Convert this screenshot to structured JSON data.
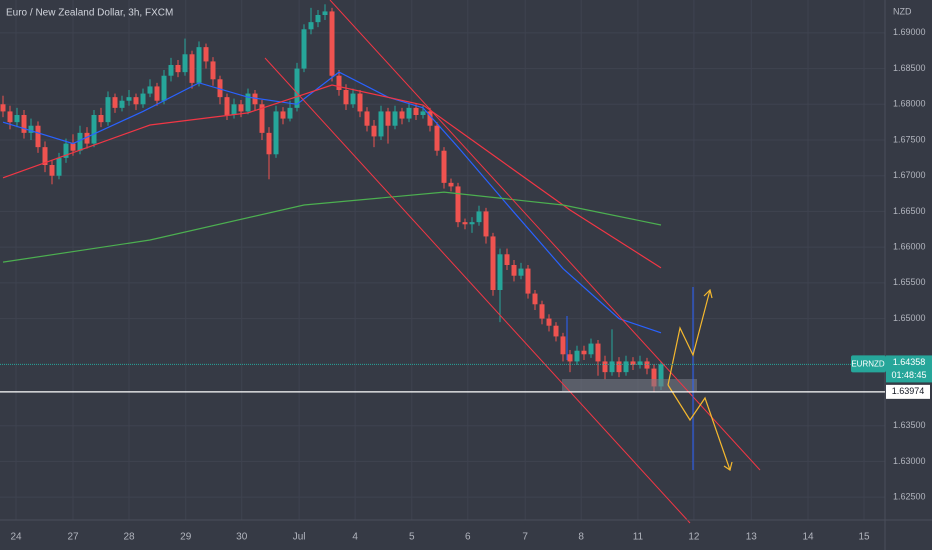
{
  "chart_data": {
    "type": "candlestick",
    "title": "Euro / New Zealand Dollar, 3h, FXCM",
    "currency": "NZD",
    "symbol": "EURNZD",
    "last_price": 1.64358,
    "countdown": "01:48:45",
    "level": 1.63974,
    "up_color": "#26a69a",
    "down_color": "#ef5350",
    "xlim": [
      -0.43,
      126
    ],
    "ylim": [
      1.6218,
      1.6946
    ],
    "xticks": [
      {
        "value": 1.86,
        "label": "24"
      },
      {
        "value": 10,
        "label": "27"
      },
      {
        "value": 18,
        "label": "28"
      },
      {
        "value": 26.1,
        "label": "29"
      },
      {
        "value": 34.1,
        "label": "30"
      },
      {
        "value": 42.3,
        "label": "Jul"
      },
      {
        "value": 50.3,
        "label": "4"
      },
      {
        "value": 58.4,
        "label": "5"
      },
      {
        "value": 66.4,
        "label": "6"
      },
      {
        "value": 74.6,
        "label": "7"
      },
      {
        "value": 82.6,
        "label": "8"
      },
      {
        "value": 90.7,
        "label": "11"
      },
      {
        "value": 98.7,
        "label": "12"
      },
      {
        "value": 106.9,
        "label": "13"
      },
      {
        "value": 115,
        "label": "14"
      },
      {
        "value": 123,
        "label": "15"
      }
    ],
    "yticks": [
      {
        "value": 1.69,
        "label": "1.69000"
      },
      {
        "value": 1.685,
        "label": "1.68500"
      },
      {
        "value": 1.68,
        "label": "1.68000"
      },
      {
        "value": 1.675,
        "label": "1.67500"
      },
      {
        "value": 1.67,
        "label": "1.67000"
      },
      {
        "value": 1.665,
        "label": "1.66500"
      },
      {
        "value": 1.66,
        "label": "1.66000"
      },
      {
        "value": 1.655,
        "label": "1.65500"
      },
      {
        "value": 1.65,
        "label": "1.65000"
      },
      {
        "value": 1.635,
        "label": "1.63500"
      },
      {
        "value": 1.63,
        "label": "1.63000"
      },
      {
        "value": 1.625,
        "label": "1.62500"
      }
    ],
    "open": [
      1.68,
      1.679,
      1.6775,
      1.6785,
      1.676,
      1.677,
      1.674,
      1.6715,
      1.67,
      1.6725,
      1.6745,
      1.6735,
      1.676,
      1.6745,
      1.6785,
      1.6775,
      1.681,
      1.6795,
      1.6805,
      1.681,
      1.68,
      1.6815,
      1.6825,
      1.6805,
      1.684,
      1.6855,
      1.6845,
      1.687,
      1.683,
      1.688,
      1.686,
      1.6835,
      1.681,
      1.6785,
      1.68,
      1.679,
      1.6815,
      1.68,
      1.676,
      1.673,
      1.679,
      1.678,
      1.6795,
      1.685,
      1.6905,
      1.6915,
      1.6925,
      1.693,
      1.684,
      1.682,
      1.68,
      1.6815,
      1.679,
      1.677,
      1.6755,
      1.679,
      1.677,
      1.679,
      1.678,
      1.6795,
      1.6785,
      1.679,
      1.677,
      1.6735,
      1.669,
      1.6685,
      1.6635,
      1.6632,
      1.6635,
      1.665,
      1.6615,
      1.654,
      1.659,
      1.6575,
      1.656,
      1.657,
      1.6535,
      1.652,
      1.65,
      1.649,
      1.6475,
      1.645,
      1.644,
      1.6455,
      1.645,
      1.6465,
      1.644,
      1.6425,
      1.644,
      1.6425,
      1.644,
      1.6435,
      1.644,
      1.643,
      1.6405
    ],
    "high": [
      1.6812,
      1.6798,
      1.6795,
      1.6792,
      1.678,
      1.6776,
      1.6748,
      1.6722,
      1.6732,
      1.6752,
      1.6758,
      1.677,
      1.6768,
      1.6792,
      1.6795,
      1.6818,
      1.6815,
      1.6812,
      1.682,
      1.6815,
      1.6822,
      1.6835,
      1.683,
      1.6848,
      1.6865,
      1.6862,
      1.6892,
      1.6875,
      1.6888,
      1.6885,
      1.6866,
      1.684,
      1.6815,
      1.6808,
      1.6806,
      1.6822,
      1.682,
      1.6806,
      1.6768,
      1.6798,
      1.6796,
      1.6805,
      1.6858,
      1.6912,
      1.6935,
      1.6932,
      1.694,
      1.6935,
      1.6848,
      1.6828,
      1.6822,
      1.682,
      1.6796,
      1.6778,
      1.6798,
      1.6795,
      1.6798,
      1.6795,
      1.6802,
      1.68,
      1.6798,
      1.6795,
      1.6775,
      1.674,
      1.6696,
      1.669,
      1.664,
      1.6642,
      1.6658,
      1.6655,
      1.662,
      1.6598,
      1.6598,
      1.6582,
      1.6578,
      1.6575,
      1.654,
      1.6525,
      1.6506,
      1.6495,
      1.648,
      1.6456,
      1.6462,
      1.6462,
      1.6472,
      1.647,
      1.6448,
      1.6485,
      1.6446,
      1.6448,
      1.6446,
      1.6448,
      1.6445,
      1.6436,
      1.644
    ],
    "low": [
      1.6782,
      1.6765,
      1.6768,
      1.6752,
      1.675,
      1.6732,
      1.6705,
      1.6688,
      1.6695,
      1.6718,
      1.6728,
      1.673,
      1.6738,
      1.674,
      1.6768,
      1.677,
      1.6788,
      1.679,
      1.6798,
      1.6792,
      1.6795,
      1.681,
      1.6798,
      1.68,
      1.6832,
      1.6838,
      1.684,
      1.6822,
      1.6825,
      1.685,
      1.6826,
      1.68,
      1.6778,
      1.678,
      1.6782,
      1.6786,
      1.6792,
      1.675,
      1.6695,
      1.6725,
      1.6772,
      1.6776,
      1.679,
      1.6845,
      1.6898,
      1.6908,
      1.6918,
      1.6832,
      1.6812,
      1.6792,
      1.6795,
      1.6782,
      1.6762,
      1.674,
      1.675,
      1.6745,
      1.6765,
      1.6772,
      1.6775,
      1.6778,
      1.678,
      1.6762,
      1.6728,
      1.6682,
      1.6678,
      1.6628,
      1.6625,
      1.662,
      1.663,
      1.6605,
      1.6532,
      1.6495,
      1.6568,
      1.6552,
      1.6555,
      1.6528,
      1.6512,
      1.6492,
      1.6482,
      1.6468,
      1.644,
      1.6425,
      1.6435,
      1.6442,
      1.6445,
      1.642,
      1.6415,
      1.642,
      1.6418,
      1.642,
      1.6428,
      1.643,
      1.6422,
      1.6398,
      1.64
    ],
    "close": [
      1.679,
      1.6775,
      1.6785,
      1.676,
      1.677,
      1.674,
      1.6715,
      1.67,
      1.6725,
      1.6745,
      1.6735,
      1.676,
      1.6745,
      1.6785,
      1.6775,
      1.681,
      1.6795,
      1.6805,
      1.681,
      1.68,
      1.6815,
      1.6825,
      1.6805,
      1.684,
      1.6855,
      1.6845,
      1.687,
      1.683,
      1.688,
      1.686,
      1.6835,
      1.681,
      1.6785,
      1.68,
      1.679,
      1.6815,
      1.68,
      1.676,
      1.673,
      1.679,
      1.678,
      1.6795,
      1.685,
      1.6905,
      1.6915,
      1.6925,
      1.693,
      1.684,
      1.682,
      1.68,
      1.6815,
      1.679,
      1.677,
      1.6755,
      1.679,
      1.677,
      1.679,
      1.678,
      1.6795,
      1.6785,
      1.679,
      1.677,
      1.6735,
      1.669,
      1.6685,
      1.6635,
      1.6632,
      1.6635,
      1.665,
      1.6615,
      1.654,
      1.659,
      1.6575,
      1.656,
      1.657,
      1.6535,
      1.652,
      1.65,
      1.649,
      1.6475,
      1.645,
      1.644,
      1.6455,
      1.645,
      1.6465,
      1.644,
      1.6425,
      1.644,
      1.6425,
      1.644,
      1.6435,
      1.644,
      1.643,
      1.6405,
      1.6436
    ],
    "indicators": [
      {
        "color": "#2962ff",
        "x": [
          0,
          10,
          20,
          28,
          35,
          42,
          48,
          55,
          60,
          65,
          72,
          80,
          88,
          94
        ],
        "values": [
          1.6775,
          1.6745,
          1.679,
          1.683,
          1.681,
          1.68,
          1.6845,
          1.681,
          1.6795,
          1.674,
          1.666,
          1.657,
          1.65,
          1.648
        ]
      },
      {
        "color": "#f23645",
        "x": [
          0,
          21,
          35,
          47,
          60,
          71,
          81,
          94
        ],
        "values": [
          1.6697,
          1.6771,
          1.6788,
          1.6827,
          1.6799,
          1.6722,
          1.6652,
          1.6571
        ]
      },
      {
        "color": "#4caf50",
        "x": [
          0,
          21,
          43,
          63,
          80,
          94
        ],
        "values": [
          1.6579,
          1.661,
          1.6659,
          1.6677,
          1.6659,
          1.6631
        ]
      }
    ]
  }
}
